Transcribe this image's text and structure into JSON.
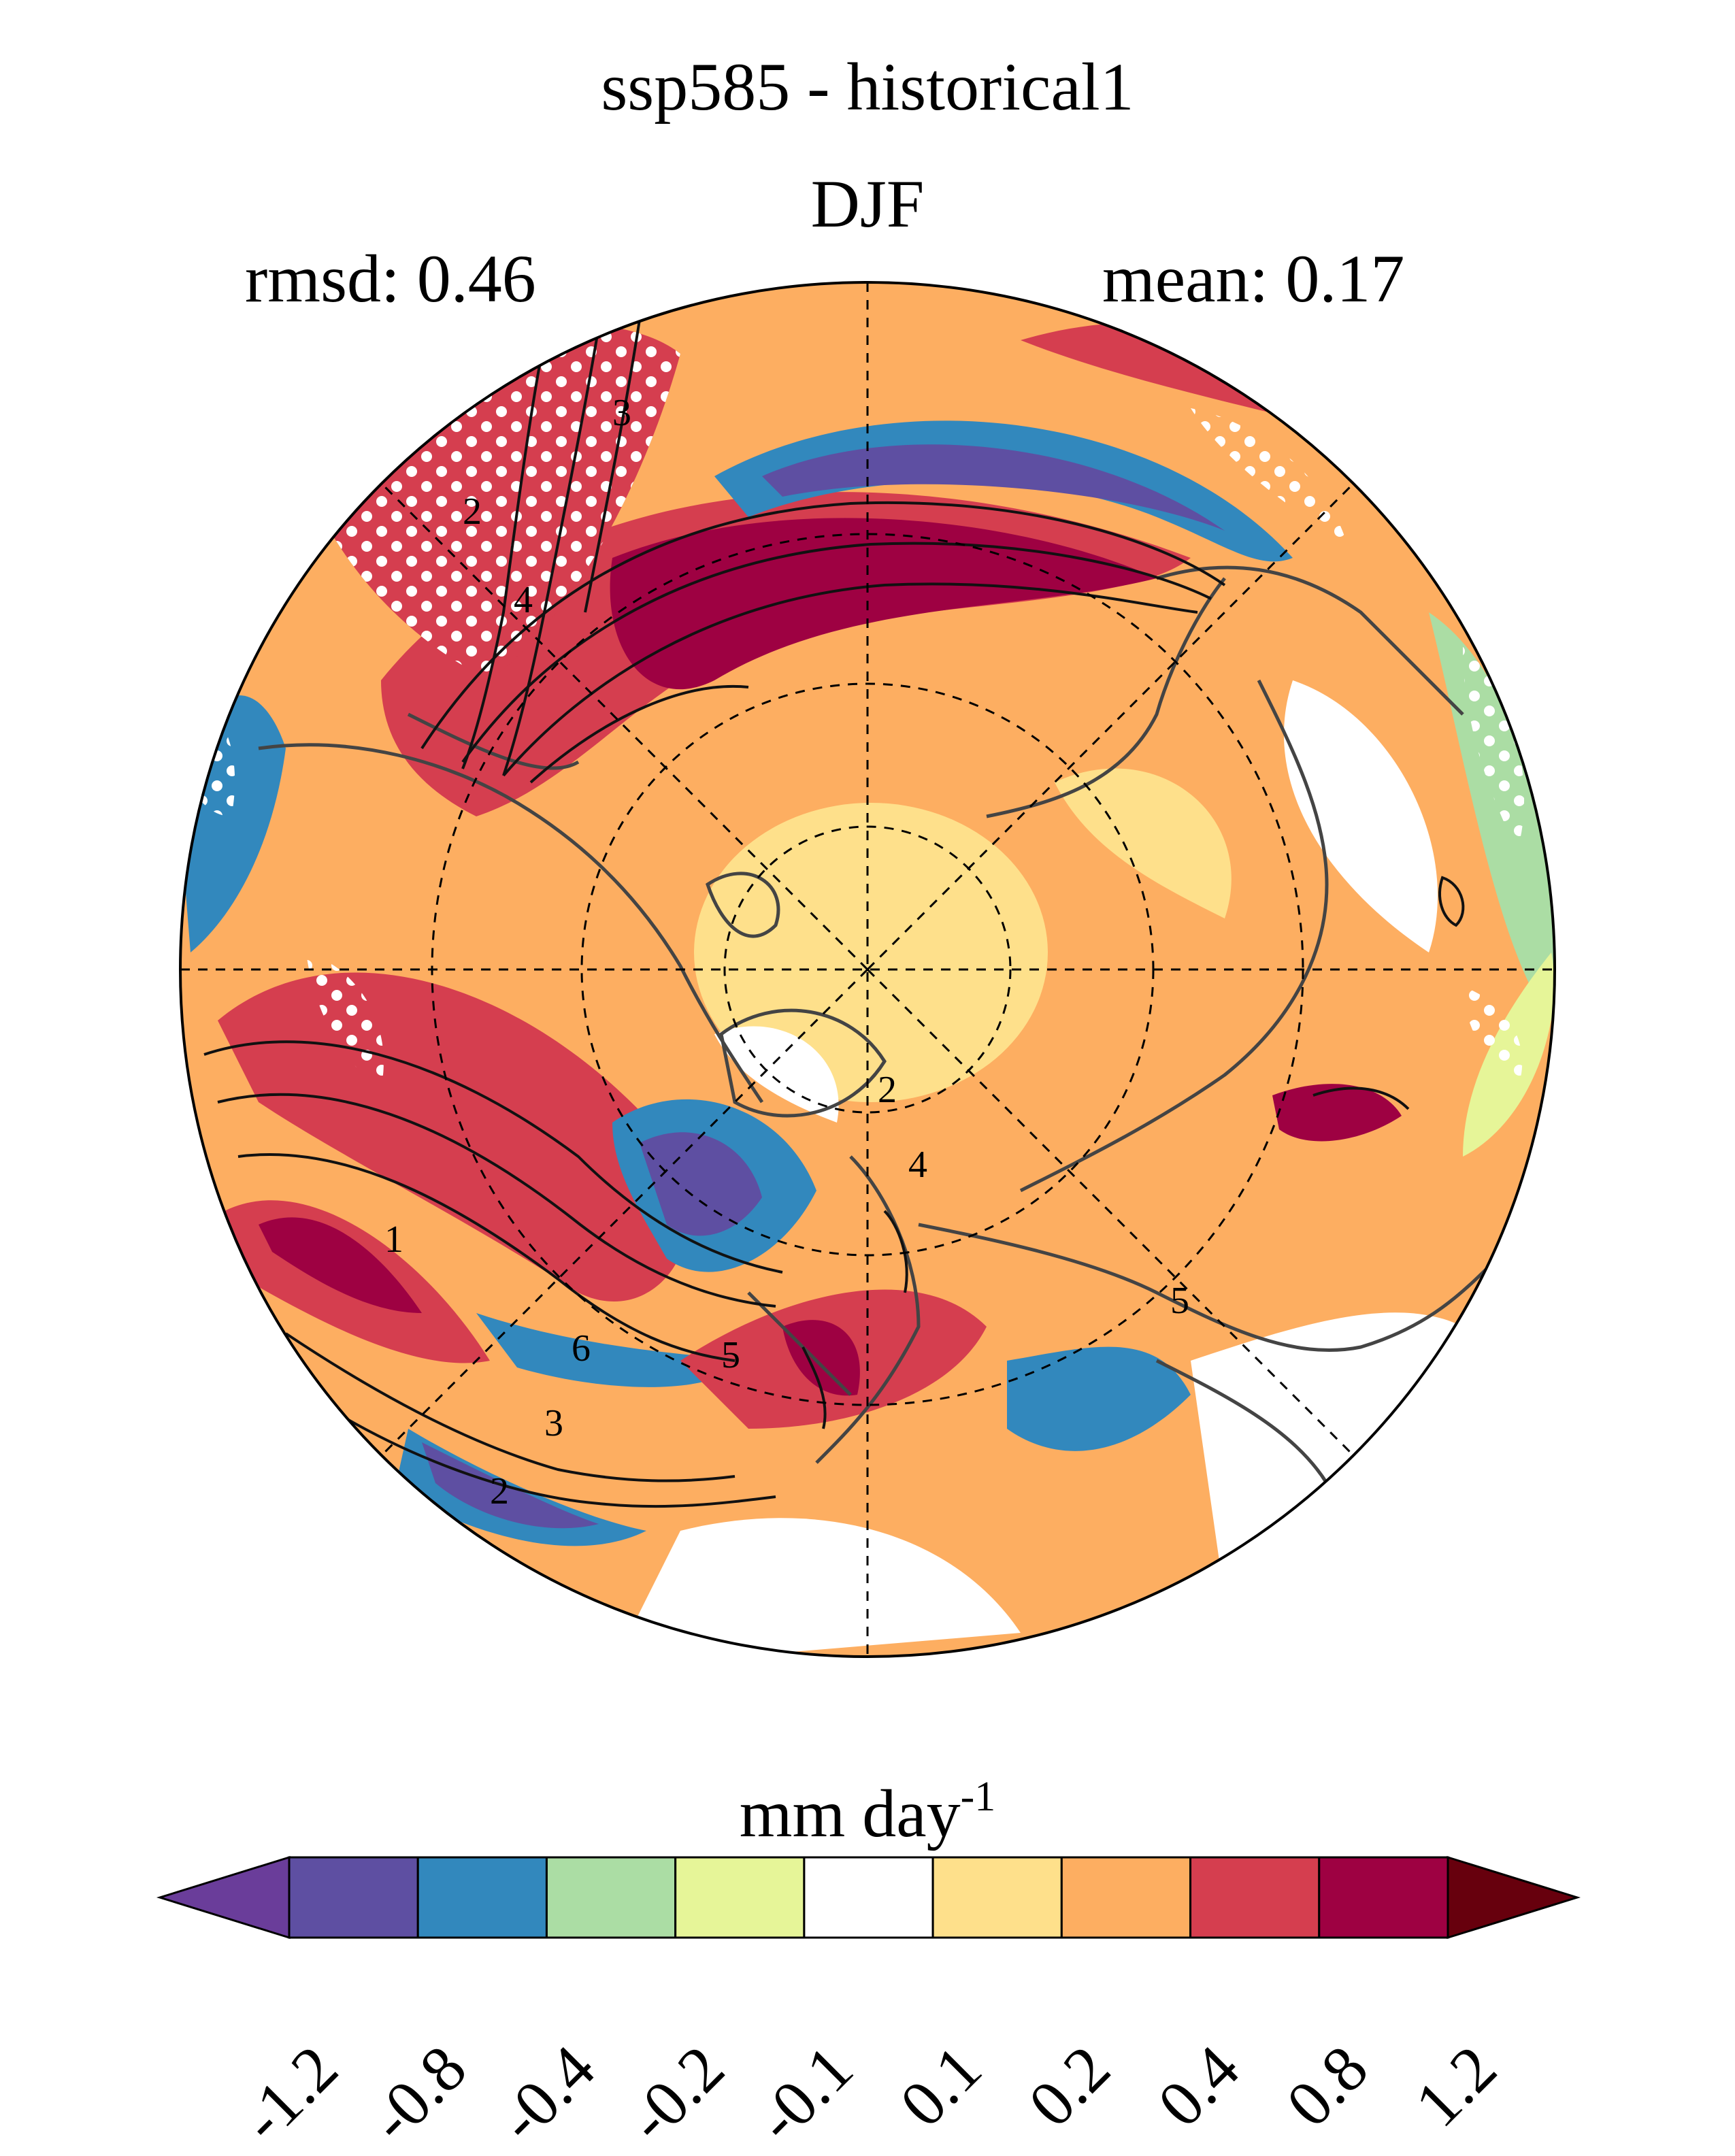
{
  "title": {
    "line1": "ssp585 - historical1",
    "line2": "DJF"
  },
  "stats": {
    "rmsd": "rmsd: 0.46",
    "mean": "mean: 0.17"
  },
  "map": {
    "projection": "north-polar-stereographic",
    "gridlines": "dashed",
    "stippling": "white dots",
    "contour_labels": [
      "3",
      "2",
      "4",
      "1",
      "6",
      "5",
      "3",
      "2",
      "2",
      "4",
      "5"
    ]
  },
  "colorbar": {
    "units_main": "mm day",
    "units_sup": "-1",
    "tick_labels": [
      "-1.2",
      "-0.8",
      "-0.4",
      "-0.2",
      "-0.1",
      "0.1",
      "0.2",
      "0.4",
      "0.8",
      "1.2"
    ],
    "colors": [
      "#6a3d9a",
      "#5e4fa2",
      "#3288bd",
      "#abdda4",
      "#e6f598",
      "#ffffff",
      "#fee08b",
      "#fdae61",
      "#d53e4f",
      "#9e0142",
      "#67000d"
    ]
  }
}
